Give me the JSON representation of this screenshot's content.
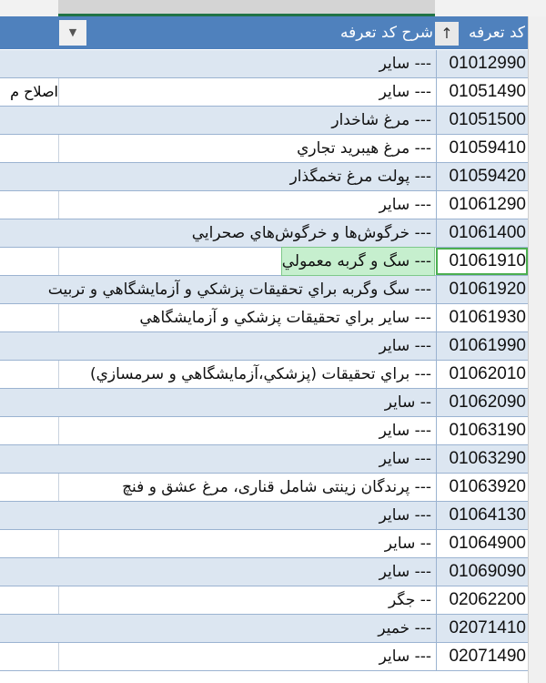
{
  "header": {
    "code_label": "کد تعرفه",
    "desc_label": "شرح کد تعرفه",
    "sort_icon": "arrow-up-icon",
    "filter_icon": "dropdown-arrow-icon"
  },
  "colors": {
    "header": "#4f81bd",
    "band": "#dce6f1",
    "highlight": "#c6efce"
  },
  "rows": [
    {
      "code": "01012990",
      "desc": "--- ساير",
      "band": "blue"
    },
    {
      "code": "01051490",
      "desc": "--- ساير",
      "left": "اصلاح م",
      "band": "white"
    },
    {
      "code": "01051500",
      "desc": "--- مرغ شاخدار",
      "band": "blue"
    },
    {
      "code": "01059410",
      "desc": "--- مرغ هيبريد تجاري",
      "band": "white"
    },
    {
      "code": "01059420",
      "desc": "--- پولت مرغ تخمگذار",
      "band": "blue"
    },
    {
      "code": "01061290",
      "desc": "--- ساير",
      "band": "white"
    },
    {
      "code": "01061400",
      "desc": "--- خرگوش‌ها و خرگوش‌هاي صحرايي",
      "band": "blue"
    },
    {
      "code": "01061910",
      "desc": "--- سگ و گربه معمولي",
      "band": "white",
      "highlighted": true
    },
    {
      "code": "01061920",
      "desc": "--- سگ وگربه براي تحقيقات پزشكي و  آزمايشگاهي و تربيت",
      "band": "blue"
    },
    {
      "code": "01061930",
      "desc": "--- ساير براي تحقيقات پزشكي و آزمايشگاهي",
      "band": "white"
    },
    {
      "code": "01061990",
      "desc": "--- ساير",
      "band": "blue"
    },
    {
      "code": "01062010",
      "desc": "--- براي تحقيقات (پزشكي،آزمايشگاهي و  سرمسازي)",
      "band": "white"
    },
    {
      "code": "01062090",
      "desc": "-- ساير",
      "band": "blue"
    },
    {
      "code": "01063190",
      "desc": "--- ساير",
      "band": "white"
    },
    {
      "code": "01063290",
      "desc": "--- ساير",
      "band": "blue"
    },
    {
      "code": "01063920",
      "desc": "--- پرندگان زينتی  شامل قناری، مرغ عشق و فنچ",
      "band": "white"
    },
    {
      "code": "01064130",
      "desc": "--- ساير",
      "band": "blue"
    },
    {
      "code": "01064900",
      "desc": "-- ساير",
      "band": "white"
    },
    {
      "code": "01069090",
      "desc": "--- ساير",
      "band": "blue"
    },
    {
      "code": "02062200",
      "desc": "-- جگر",
      "band": "white"
    },
    {
      "code": "02071410",
      "desc": "--- خمير",
      "band": "blue"
    },
    {
      "code": "02071490",
      "desc": "--- ساير",
      "band": "white"
    }
  ]
}
